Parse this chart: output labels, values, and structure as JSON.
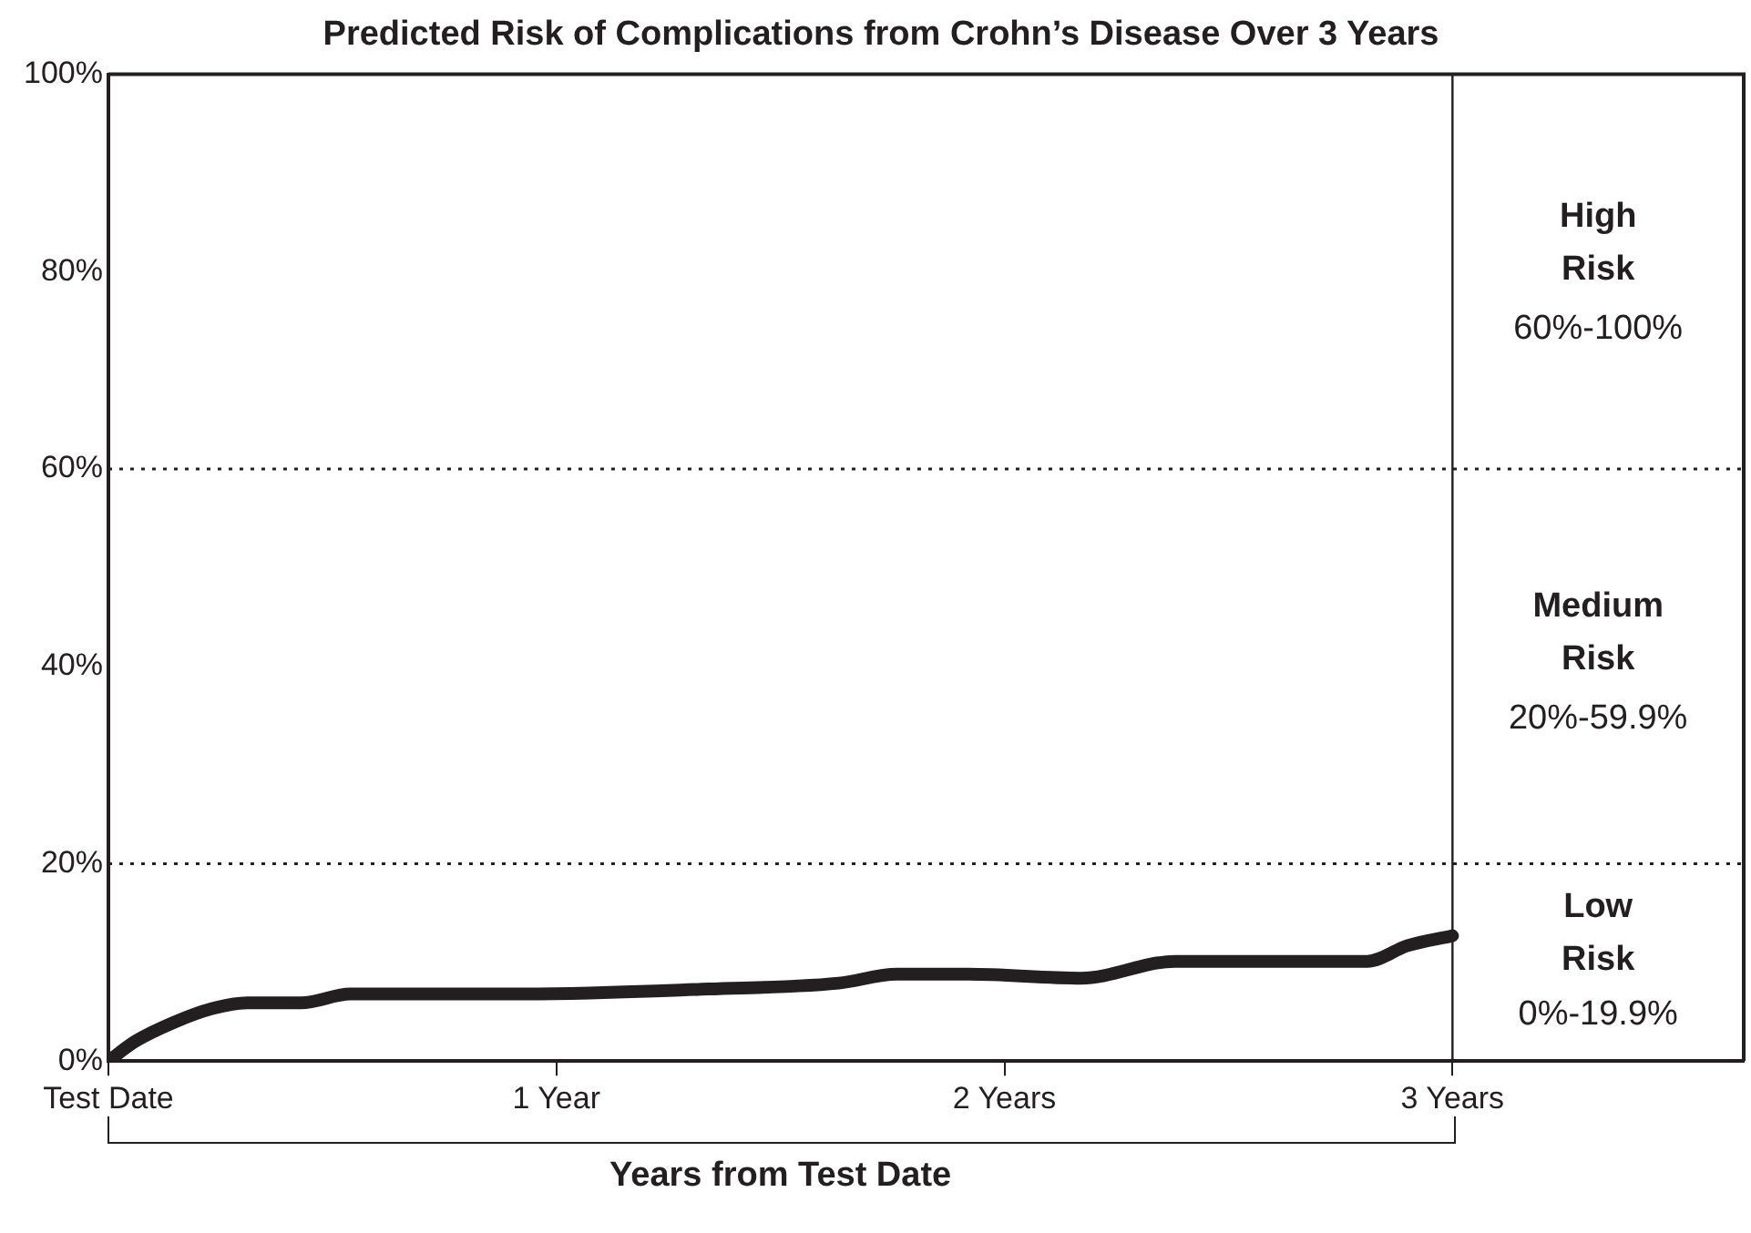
{
  "chart_data": {
    "type": "line",
    "title": "Predicted Risk of Complications from Crohn’s Disease Over 3 Years",
    "xlabel": "Years from Test Date",
    "x": [
      0,
      0.06,
      0.145,
      0.23,
      0.31,
      0.43,
      0.54,
      0.93,
      1.34,
      1.63,
      1.76,
      1.92,
      2.17,
      2.38,
      2.59,
      2.81,
      2.9,
      3.0
    ],
    "series": [
      {
        "color": "#231f20",
        "values": [
          0,
          2.0,
          3.9,
          5.3,
          5.9,
          5.9,
          6.8,
          6.8,
          7.3,
          7.9,
          8.8,
          8.8,
          8.4,
          10.1,
          10.1,
          10.1,
          11.7,
          12.7
        ]
      }
    ],
    "xlim": [
      0,
      3.65
    ],
    "xticks": [
      {
        "value": 0,
        "label": "Test Date"
      },
      {
        "value": 1,
        "label": "1 Year"
      },
      {
        "value": 2,
        "label": "2 Years"
      },
      {
        "value": 3,
        "label": "3 Years"
      }
    ],
    "ylim": [
      0,
      100
    ],
    "yticks": [
      {
        "value": 0,
        "label": "0%"
      },
      {
        "value": 20,
        "label": "20%"
      },
      {
        "value": 40,
        "label": "40%"
      },
      {
        "value": 60,
        "label": "60%"
      },
      {
        "value": 80,
        "label": "80%"
      },
      {
        "value": 100,
        "label": "100%"
      }
    ],
    "grid": false,
    "legend": false,
    "marker": "none",
    "line_style": "solid",
    "ref_lines": [
      {
        "axis": "y",
        "value": 20,
        "line_style": "dotted",
        "color": "#231f20"
      },
      {
        "axis": "y",
        "value": 60,
        "line_style": "dotted",
        "color": "#231f20"
      },
      {
        "axis": "x",
        "value": 3,
        "line_style": "solid",
        "color": "#231f20"
      }
    ],
    "annotations": [
      "High Risk",
      "60%-100%",
      "Medium Risk",
      "20%-59.9%",
      "Low Risk",
      "0%-19.9%"
    ]
  }
}
